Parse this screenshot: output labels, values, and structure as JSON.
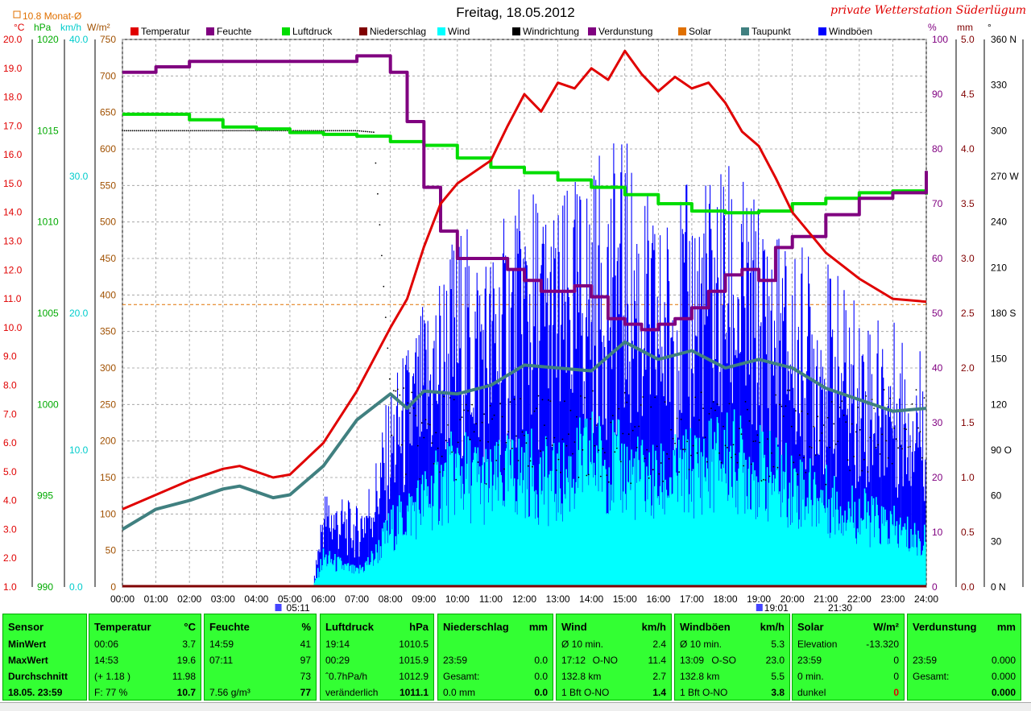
{
  "header": {
    "title": "Freitag, 18.05.2012",
    "station": "private Wetterstation Süderlügum",
    "monthly_avg": "10.8 Monat-Ø",
    "left_units": [
      "°C",
      "hPa",
      "km/h",
      "W/m²"
    ],
    "right_units": [
      "%",
      "mm",
      "°"
    ]
  },
  "legend": [
    {
      "label": "Temperatur",
      "color": "#e00000"
    },
    {
      "label": "Feuchte",
      "color": "#800080"
    },
    {
      "label": "Luftdruck",
      "color": "#00dd00"
    },
    {
      "label": "Niederschlag",
      "color": "#800000"
    },
    {
      "label": "Wind",
      "color": "#00ffff"
    },
    {
      "label": "Windrichtung",
      "color": "#000000"
    },
    {
      "label": "Verdunstung",
      "color": "#800080"
    },
    {
      "label": "Solar",
      "color": "#e07000"
    },
    {
      "label": "Taupunkt",
      "color": "#408080"
    },
    {
      "label": "Windböen",
      "color": "#0000ff"
    }
  ],
  "chart_data": {
    "type": "line",
    "x_labels": [
      "00:00",
      "01:00",
      "02:00",
      "03:00",
      "04:00",
      "05:00",
      "06:00",
      "07:00",
      "08:00",
      "09:00",
      "10:00",
      "11:00",
      "12:00",
      "13:00",
      "14:00",
      "15:00",
      "16:00",
      "17:00",
      "18:00",
      "19:00",
      "20:00",
      "21:00",
      "22:00",
      "23:00",
      "24:00"
    ],
    "axes": {
      "temperature_c": {
        "min": 1.0,
        "max": 20.0,
        "ticks": [
          "20.0",
          "19.0",
          "18.0",
          "17.0",
          "16.0",
          "15.0",
          "14.0",
          "13.0",
          "12.0",
          "11.0",
          "10.0",
          "9.0",
          "8.0",
          "7.0",
          "6.0",
          "5.0",
          "4.0",
          "3.0",
          "2.0",
          "1.0"
        ]
      },
      "pressure_hpa": {
        "min": 990,
        "max": 1020,
        "ticks": [
          "1020",
          "1015",
          "1010",
          "1005",
          "1000",
          "995",
          "990"
        ]
      },
      "wind_kmh": {
        "min": 0.0,
        "max": 40.0,
        "ticks": [
          "40.0",
          "30.0",
          "20.0",
          "10.0",
          "0.0"
        ]
      },
      "solar_wm2": {
        "min": 0,
        "max": 750,
        "ticks": [
          "750",
          "700",
          "650",
          "600",
          "550",
          "500",
          "450",
          "400",
          "350",
          "300",
          "250",
          "200",
          "150",
          "100",
          "50",
          "0"
        ]
      },
      "humidity_pct": {
        "min": 0,
        "max": 100,
        "ticks": [
          "100",
          "90",
          "80",
          "70",
          "60",
          "50",
          "40",
          "30",
          "20",
          "10",
          "0"
        ]
      },
      "rain_mm": {
        "min": 0.0,
        "max": 5.0,
        "ticks": [
          "5.0",
          "4.5",
          "4.0",
          "3.5",
          "3.0",
          "2.5",
          "2.0",
          "1.5",
          "1.0",
          "0.5",
          "0.0"
        ]
      },
      "direction_deg": {
        "min": 0,
        "max": 360,
        "ticks": [
          "360 N",
          "330",
          "300",
          "270 W",
          "240",
          "210",
          "180 S",
          "150",
          "120",
          "90 O",
          "60",
          "30",
          "0 N"
        ]
      }
    },
    "series": [
      {
        "name": "Temperatur",
        "axis": "temperature_c",
        "hours": [
          0,
          1,
          2,
          3,
          3.5,
          4.5,
          5,
          6,
          7,
          8,
          8.5,
          9,
          9.5,
          10,
          11,
          11.5,
          12,
          12.5,
          13,
          13.5,
          14,
          14.5,
          15,
          15.5,
          16,
          16.5,
          17,
          17.5,
          18,
          18.5,
          19,
          19.5,
          20,
          21,
          22,
          23,
          24
        ],
        "values": [
          3.7,
          4.2,
          4.7,
          5.1,
          5.2,
          4.8,
          4.9,
          6.0,
          7.8,
          10.0,
          11.0,
          12.8,
          14.3,
          15.0,
          15.8,
          17.0,
          18.1,
          17.5,
          18.5,
          18.3,
          19.0,
          18.6,
          19.6,
          18.8,
          18.2,
          18.7,
          18.3,
          18.5,
          17.8,
          16.8,
          16.3,
          15.2,
          14.0,
          12.6,
          11.7,
          11.0,
          10.9
        ]
      },
      {
        "name": "Feuchte",
        "axis": "humidity_pct",
        "hours": [
          0,
          1,
          2,
          3,
          4,
          5,
          6,
          7,
          7.2,
          8,
          8.5,
          9,
          9.5,
          10,
          11,
          11.5,
          12,
          12.5,
          13,
          13.5,
          14,
          14.5,
          15,
          15.5,
          16,
          16.5,
          17,
          17.5,
          18,
          18.5,
          19,
          19.5,
          20,
          21,
          22,
          23,
          24
        ],
        "values": [
          94,
          95,
          96,
          96,
          96,
          96,
          96,
          97,
          97,
          94,
          85,
          73,
          65,
          60,
          60,
          58,
          56,
          54,
          54,
          55,
          53,
          49,
          48,
          47,
          48,
          49,
          51,
          54,
          57,
          58,
          56,
          62,
          64,
          68,
          71,
          72,
          76
        ]
      },
      {
        "name": "Luftdruck",
        "axis": "pressure_hpa",
        "hours": [
          0,
          2,
          3,
          4,
          5,
          6,
          7,
          8,
          9,
          10,
          11,
          12,
          13,
          14,
          15,
          16,
          17,
          18,
          19,
          20,
          21,
          22,
          23,
          24
        ],
        "values": [
          1015.9,
          1015.6,
          1015.2,
          1015.1,
          1014.9,
          1014.8,
          1014.7,
          1014.4,
          1014.2,
          1013.5,
          1013.0,
          1012.7,
          1012.3,
          1011.9,
          1011.5,
          1011.0,
          1010.6,
          1010.5,
          1010.6,
          1011.0,
          1011.3,
          1011.6,
          1011.7,
          1011.5
        ]
      },
      {
        "name": "Taupunkt",
        "axis": "temperature_c",
        "hours": [
          0,
          1,
          2,
          3,
          3.5,
          4.5,
          5,
          6,
          7,
          8,
          8.5,
          9,
          10,
          11,
          12,
          13,
          14,
          15,
          16,
          17,
          18,
          19,
          20,
          21,
          22,
          23,
          24
        ],
        "values": [
          3.0,
          3.7,
          4.0,
          4.4,
          4.5,
          4.1,
          4.2,
          5.2,
          6.8,
          7.7,
          7.2,
          7.8,
          7.7,
          8.0,
          8.7,
          8.6,
          8.5,
          9.5,
          8.9,
          9.2,
          8.6,
          8.9,
          8.6,
          7.9,
          7.5,
          7.1,
          7.2
        ]
      },
      {
        "name": "Wind",
        "axis": "wind_kmh",
        "hours": [
          0,
          5.7,
          6,
          7,
          7.5,
          8,
          9,
          10,
          11,
          12,
          13,
          14,
          15,
          16,
          17,
          18,
          19,
          20,
          21,
          22,
          23,
          24
        ],
        "values": [
          0,
          0,
          2,
          1,
          2,
          4,
          6,
          8,
          7,
          8,
          7,
          9,
          8,
          7,
          8,
          9,
          8,
          7,
          6,
          5,
          4,
          3
        ]
      },
      {
        "name": "Windböen",
        "axis": "wind_kmh",
        "hours": [
          0,
          5.7,
          6,
          7,
          7.5,
          8,
          9,
          10,
          11,
          12,
          13,
          14,
          15,
          16,
          17,
          18,
          19,
          20,
          21,
          22,
          23,
          24
        ],
        "values": [
          0,
          0,
          5,
          4,
          6,
          10,
          14,
          18,
          17,
          20,
          19,
          21,
          22,
          18,
          20,
          21,
          19,
          17,
          16,
          14,
          13,
          12
        ]
      },
      {
        "name": "Windrichtung",
        "axis": "direction_deg",
        "hours": [
          0,
          1,
          2,
          3,
          4,
          5,
          6,
          7,
          7.5,
          8,
          8.5,
          9,
          10,
          11,
          12,
          13,
          14,
          15,
          16,
          17,
          18,
          19,
          20,
          21,
          22,
          23,
          24
        ],
        "values": [
          300,
          300,
          300,
          300,
          300,
          300,
          300,
          300,
          299,
          130,
          100,
          95,
          100,
          95,
          95,
          100,
          100,
          98,
          95,
          100,
          95,
          98,
          100,
          95,
          98,
          102,
          100
        ]
      }
    ],
    "reference_lines": [
      {
        "name": "Monat-Ø",
        "axis": "temperature_c",
        "value": 10.8,
        "color": "#e07000"
      }
    ],
    "markers": {
      "sunrise": "05:11",
      "sunset": "21:30",
      "event": "19:01"
    }
  },
  "panels": [
    {
      "title": "Sensor",
      "unit": "",
      "rows": [
        {
          "a": "MinWert",
          "m": "",
          "b": ""
        },
        {
          "a": "MaxWert",
          "m": "",
          "b": ""
        },
        {
          "a": "Durchschnitt",
          "m": "",
          "b": ""
        },
        {
          "a": "18.05. 23:59",
          "m": "",
          "b": ""
        }
      ]
    },
    {
      "title": "Temperatur",
      "unit": "°C",
      "rows": [
        {
          "a": "00:06",
          "m": "",
          "b": "3.7"
        },
        {
          "a": "14:53",
          "m": "",
          "b": "19.6"
        },
        {
          "a": "(+ 1.18 )",
          "m": "",
          "b": "11.98"
        },
        {
          "a": "F: 77 %",
          "m": "",
          "b": "10.7"
        }
      ]
    },
    {
      "title": "Feuchte",
      "unit": "%",
      "rows": [
        {
          "a": "14:59",
          "m": "",
          "b": "41"
        },
        {
          "a": "07:11",
          "m": "",
          "b": "97"
        },
        {
          "a": "",
          "m": "",
          "b": "73"
        },
        {
          "a": "7.56 g/m³",
          "m": "",
          "b": "77"
        }
      ]
    },
    {
      "title": "Luftdruck",
      "unit": "hPa",
      "rows": [
        {
          "a": "19:14",
          "m": "",
          "b": "1010.5"
        },
        {
          "a": "00:29",
          "m": "",
          "b": "1015.9"
        },
        {
          "a": "ˆ0.7hPa/h",
          "m": "",
          "b": "1012.9"
        },
        {
          "a": "veränderlich",
          "m": "",
          "b": "1011.1"
        }
      ]
    },
    {
      "title": "Niederschlag",
      "unit": "mm",
      "rows": [
        {
          "a": "",
          "m": "",
          "b": ""
        },
        {
          "a": "23:59",
          "m": "",
          "b": "0.0"
        },
        {
          "a": "Gesamt:",
          "m": "",
          "b": "0.0"
        },
        {
          "a": "0.0 mm",
          "m": "",
          "b": "0.0"
        }
      ]
    },
    {
      "title": "Wind",
      "unit": "km/h",
      "rows": [
        {
          "a": "Ø 10 min.",
          "m": "",
          "b": "2.4"
        },
        {
          "a": "17:12",
          "m": "O-NO",
          "b": "11.4"
        },
        {
          "a": "132.8 km",
          "m": "",
          "b": "2.7"
        },
        {
          "a": "1 Bft O-NO",
          "m": "",
          "b": "1.4"
        }
      ]
    },
    {
      "title": "Windböen",
      "unit": "km/h",
      "rows": [
        {
          "a": "Ø 10 min.",
          "m": "",
          "b": "5.3"
        },
        {
          "a": "13:09",
          "m": "O-SO",
          "b": "23.0"
        },
        {
          "a": "132.8 km",
          "m": "",
          "b": "5.5"
        },
        {
          "a": "1 Bft O-NO",
          "m": "",
          "b": "3.8"
        }
      ]
    },
    {
      "title": "Solar",
      "unit": "W/m²",
      "rows": [
        {
          "a": "Elevation",
          "m": "",
          "b": "-13.320"
        },
        {
          "a": "23:59",
          "m": "",
          "b": "0"
        },
        {
          "a": "0 min.",
          "m": "",
          "b": "0"
        },
        {
          "a": "dunkel",
          "m": "",
          "b": "0"
        }
      ]
    },
    {
      "title": "Verdunstung",
      "unit": "mm",
      "rows": [
        {
          "a": "",
          "m": "",
          "b": ""
        },
        {
          "a": "23:59",
          "m": "",
          "b": "0.000"
        },
        {
          "a": "Gesamt:",
          "m": "",
          "b": "0.000"
        },
        {
          "a": "",
          "m": "",
          "b": "0.000"
        }
      ]
    }
  ]
}
